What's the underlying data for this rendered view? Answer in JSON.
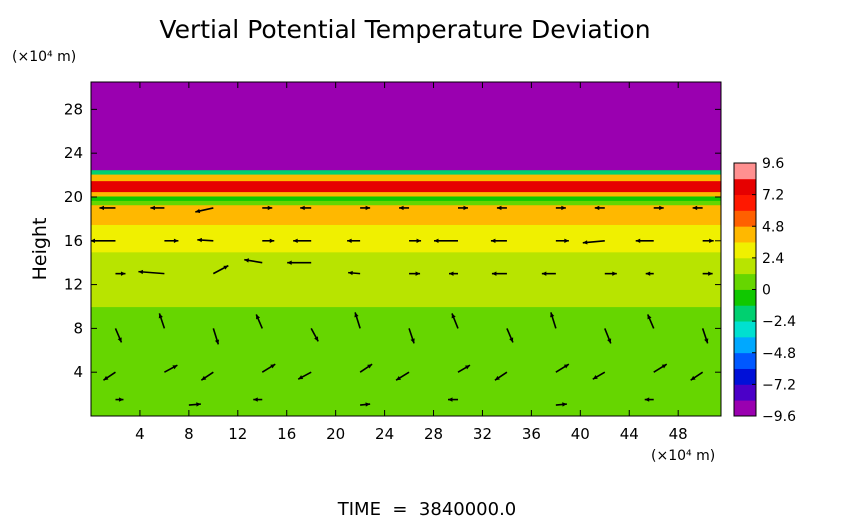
{
  "chart_data": {
    "type": "heatmap",
    "title": "Vertial Potential Temperature Deviation",
    "ylabel": "Height",
    "xunit": "(×10⁴ m)",
    "yunit": "(×10⁴ m)",
    "footer": "TIME  =  3840000.0",
    "xlim": [
      0,
      51.5
    ],
    "ylim": [
      0,
      30.5
    ],
    "xticks": [
      4,
      8,
      12,
      16,
      20,
      24,
      28,
      32,
      36,
      40,
      44,
      48
    ],
    "yticks": [
      4,
      8,
      12,
      16,
      20,
      24,
      28
    ],
    "colorbar": {
      "range": [
        -9.6,
        9.6
      ],
      "ticks": [
        9.6,
        7.2,
        4.8,
        2.4,
        0,
        -2.4,
        -4.8,
        -7.2,
        -9.6
      ],
      "tick_labels": [
        "9.6",
        "7.2",
        "4.8",
        "2.4",
        "0",
        "−2.4",
        "−4.8",
        "−7.2",
        "−9.6"
      ],
      "colors": [
        "#9a00b0",
        "#4b00c8",
        "#0010d8",
        "#0058ff",
        "#00a8ff",
        "#00e0d0",
        "#00d070",
        "#10c800",
        "#66d600",
        "#b8e400",
        "#f0f000",
        "#ffb800",
        "#ff6000",
        "#ff1800",
        "#e60000",
        "#ff9090"
      ]
    },
    "field_bands": [
      {
        "y": [
          0,
          10
        ],
        "value": 0.9
      },
      {
        "y": [
          10,
          11.5
        ],
        "value": 1.4
      },
      {
        "y": [
          11.5,
          12.8
        ],
        "value": 2.0
      },
      {
        "y": [
          12.8,
          15
        ],
        "value": 2.3
      },
      {
        "y": [
          15,
          17.5
        ],
        "value": 3.3
      },
      {
        "y": [
          17.5,
          19.3
        ],
        "value": 4.1
      },
      {
        "y": [
          19.3,
          19.7
        ],
        "value": 0.2
      },
      {
        "y": [
          19.7,
          20.1
        ],
        "value": -1.2
      },
      {
        "y": [
          20.1,
          20.5
        ],
        "value": 3.9
      },
      {
        "y": [
          20.5,
          21.5
        ],
        "value": 7.4
      },
      {
        "y": [
          21.5,
          22.1
        ],
        "value": 4.6
      },
      {
        "y": [
          22.1,
          22.5
        ],
        "value": -2.0
      },
      {
        "y": [
          22.5,
          30.5
        ],
        "value": -9.6
      }
    ],
    "wind_vectors": [
      {
        "x": 2,
        "y": 8,
        "u": 0.6,
        "v": -1.4
      },
      {
        "x": 6,
        "y": 8,
        "u": -0.5,
        "v": 1.5
      },
      {
        "x": 10,
        "y": 8,
        "u": 0.5,
        "v": -1.6
      },
      {
        "x": 14,
        "y": 8,
        "u": -0.6,
        "v": 1.4
      },
      {
        "x": 18,
        "y": 8,
        "u": 0.7,
        "v": -1.3
      },
      {
        "x": 22,
        "y": 8,
        "u": -0.5,
        "v": 1.6
      },
      {
        "x": 26,
        "y": 8,
        "u": 0.5,
        "v": -1.5
      },
      {
        "x": 30,
        "y": 8,
        "u": -0.6,
        "v": 1.5
      },
      {
        "x": 34,
        "y": 8,
        "u": 0.6,
        "v": -1.4
      },
      {
        "x": 38,
        "y": 8,
        "u": -0.5,
        "v": 1.6
      },
      {
        "x": 42,
        "y": 8,
        "u": 0.6,
        "v": -1.5
      },
      {
        "x": 46,
        "y": 8,
        "u": -0.6,
        "v": 1.4
      },
      {
        "x": 50,
        "y": 8,
        "u": 0.5,
        "v": -1.5
      },
      {
        "x": 2,
        "y": 4,
        "u": -1.2,
        "v": -0.8
      },
      {
        "x": 6,
        "y": 4,
        "u": 1.3,
        "v": 0.7
      },
      {
        "x": 10,
        "y": 4,
        "u": -1.2,
        "v": -0.8
      },
      {
        "x": 14,
        "y": 4,
        "u": 1.3,
        "v": 0.8
      },
      {
        "x": 18,
        "y": 4,
        "u": -1.3,
        "v": -0.7
      },
      {
        "x": 22,
        "y": 4,
        "u": 1.2,
        "v": 0.8
      },
      {
        "x": 26,
        "y": 4,
        "u": -1.3,
        "v": -0.8
      },
      {
        "x": 30,
        "y": 4,
        "u": 1.2,
        "v": 0.7
      },
      {
        "x": 34,
        "y": 4,
        "u": -1.2,
        "v": -0.8
      },
      {
        "x": 38,
        "y": 4,
        "u": 1.3,
        "v": 0.8
      },
      {
        "x": 42,
        "y": 4,
        "u": -1.2,
        "v": -0.7
      },
      {
        "x": 46,
        "y": 4,
        "u": 1.3,
        "v": 0.8
      },
      {
        "x": 50,
        "y": 4,
        "u": -1.2,
        "v": -0.8
      },
      {
        "x": 2,
        "y": 1.5,
        "u": 0.8,
        "v": 0
      },
      {
        "x": 8,
        "y": 1,
        "u": 1.2,
        "v": 0.1
      },
      {
        "x": 14,
        "y": 1.5,
        "u": -0.9,
        "v": 0
      },
      {
        "x": 22,
        "y": 1,
        "u": 1.0,
        "v": 0.1
      },
      {
        "x": 30,
        "y": 1.5,
        "u": -1.0,
        "v": 0
      },
      {
        "x": 38,
        "y": 1,
        "u": 1.1,
        "v": 0.1
      },
      {
        "x": 46,
        "y": 1.5,
        "u": -0.9,
        "v": 0
      },
      {
        "x": 2,
        "y": 13,
        "u": 1.0,
        "v": 0
      },
      {
        "x": 6,
        "y": 13,
        "u": -2.6,
        "v": 0.2
      },
      {
        "x": 10,
        "y": 13,
        "u": 1.5,
        "v": 0.8
      },
      {
        "x": 14,
        "y": 14,
        "u": -1.8,
        "v": 0.3
      },
      {
        "x": 18,
        "y": 14,
        "u": -2.4,
        "v": 0
      },
      {
        "x": 22,
        "y": 13,
        "u": -1.2,
        "v": 0.1
      },
      {
        "x": 26,
        "y": 13,
        "u": 1.1,
        "v": 0
      },
      {
        "x": 30,
        "y": 13,
        "u": -0.9,
        "v": 0
      },
      {
        "x": 34,
        "y": 13,
        "u": -1.5,
        "v": 0
      },
      {
        "x": 38,
        "y": 13,
        "u": -1.4,
        "v": 0
      },
      {
        "x": 42,
        "y": 13,
        "u": 1.2,
        "v": 0
      },
      {
        "x": 46,
        "y": 13,
        "u": -0.8,
        "v": 0
      },
      {
        "x": 50,
        "y": 13,
        "u": 1.0,
        "v": 0
      },
      {
        "x": 2,
        "y": 16,
        "u": -2.5,
        "v": 0
      },
      {
        "x": 6,
        "y": 16,
        "u": 1.4,
        "v": 0
      },
      {
        "x": 10,
        "y": 16,
        "u": -1.6,
        "v": 0.1
      },
      {
        "x": 14,
        "y": 16,
        "u": 1.2,
        "v": 0
      },
      {
        "x": 18,
        "y": 16,
        "u": -1.8,
        "v": 0
      },
      {
        "x": 22,
        "y": 16,
        "u": -1.3,
        "v": 0
      },
      {
        "x": 26,
        "y": 16,
        "u": 1.2,
        "v": 0
      },
      {
        "x": 30,
        "y": 16,
        "u": -2.4,
        "v": 0
      },
      {
        "x": 34,
        "y": 16,
        "u": -1.6,
        "v": 0
      },
      {
        "x": 38,
        "y": 16,
        "u": 1.3,
        "v": 0
      },
      {
        "x": 42,
        "y": 16,
        "u": -2.2,
        "v": -0.2
      },
      {
        "x": 46,
        "y": 16,
        "u": -1.8,
        "v": 0
      },
      {
        "x": 50,
        "y": 16,
        "u": 1.1,
        "v": 0
      },
      {
        "x": 2,
        "y": 19,
        "u": -1.6,
        "v": 0
      },
      {
        "x": 6,
        "y": 19,
        "u": -1.4,
        "v": 0
      },
      {
        "x": 10,
        "y": 19,
        "u": -1.8,
        "v": -0.4
      },
      {
        "x": 14,
        "y": 19,
        "u": 1.0,
        "v": 0
      },
      {
        "x": 18,
        "y": 19,
        "u": -1.1,
        "v": 0
      },
      {
        "x": 22,
        "y": 19,
        "u": 1.0,
        "v": 0
      },
      {
        "x": 26,
        "y": 19,
        "u": -1.0,
        "v": 0
      },
      {
        "x": 30,
        "y": 19,
        "u": 1.0,
        "v": 0
      },
      {
        "x": 34,
        "y": 19,
        "u": -1.0,
        "v": 0
      },
      {
        "x": 38,
        "y": 19,
        "u": 1.0,
        "v": 0
      },
      {
        "x": 42,
        "y": 19,
        "u": -1.0,
        "v": 0
      },
      {
        "x": 46,
        "y": 19,
        "u": 1.0,
        "v": 0
      },
      {
        "x": 50,
        "y": 19,
        "u": -1.0,
        "v": 0
      }
    ]
  }
}
